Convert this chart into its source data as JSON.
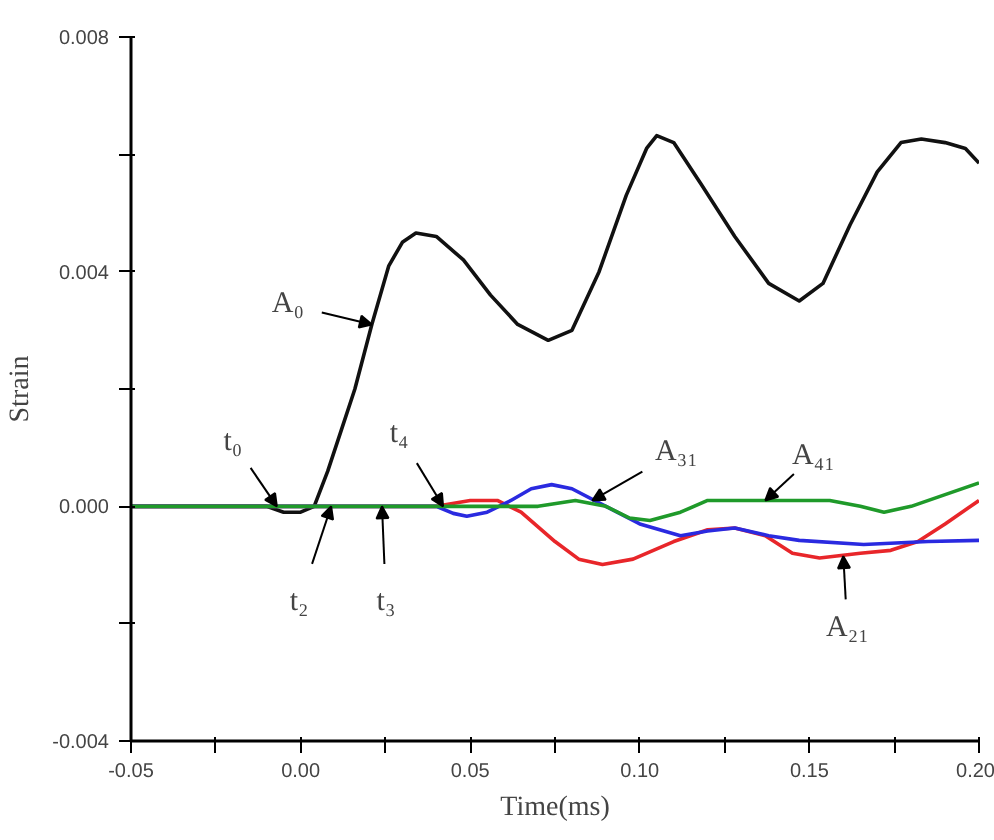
{
  "chart_data": {
    "type": "line",
    "xlabel": "Time(ms)",
    "ylabel": "Strain",
    "xlim": [
      -0.05,
      0.2
    ],
    "ylim": [
      -0.004,
      0.008
    ],
    "xticks": [
      {
        "value": -0.05,
        "label": "-0.05"
      },
      {
        "value": -0.025,
        "label": null
      },
      {
        "value": 0,
        "label": "0.00"
      },
      {
        "value": 0.025,
        "label": null
      },
      {
        "value": 0.05,
        "label": "0.05"
      },
      {
        "value": 0.075,
        "label": null
      },
      {
        "value": 0.1,
        "label": "0.10"
      },
      {
        "value": 0.125,
        "label": null
      },
      {
        "value": 0.15,
        "label": "0.15"
      },
      {
        "value": 0.175,
        "label": null
      },
      {
        "value": 0.2,
        "label": "0.20"
      }
    ],
    "yticks": [
      {
        "value": -0.004,
        "label": "-0.004"
      },
      {
        "value": -0.002,
        "label": null
      },
      {
        "value": 0,
        "label": "0.000"
      },
      {
        "value": 0.002,
        "label": null
      },
      {
        "value": 0.004,
        "label": "0.004"
      },
      {
        "value": 0.006,
        "label": null
      },
      {
        "value": 0.008,
        "label": "0.008"
      }
    ],
    "grid": false,
    "marker": "none",
    "line_style": "solid",
    "series": [
      {
        "color": "#111111",
        "x": [
          -0.05,
          -0.03,
          -0.01,
          -0.005,
          0.0,
          0.004,
          0.008,
          0.012,
          0.016,
          0.021,
          0.026,
          0.03,
          0.034,
          0.04,
          0.048,
          0.056,
          0.064,
          0.073,
          0.08,
          0.088,
          0.096,
          0.102,
          0.105,
          0.11,
          0.118,
          0.128,
          0.138,
          0.147,
          0.154,
          0.162,
          0.17,
          0.177,
          0.183,
          0.19,
          0.196,
          0.2
        ],
        "values": [
          0,
          0,
          0,
          -0.0001,
          -0.0001,
          0,
          0.0006,
          0.0013,
          0.002,
          0.0031,
          0.0041,
          0.0045,
          0.00466,
          0.0046,
          0.0042,
          0.0036,
          0.0031,
          0.00283,
          0.003,
          0.004,
          0.0053,
          0.0061,
          0.00632,
          0.0062,
          0.0055,
          0.0046,
          0.0038,
          0.0035,
          0.0038,
          0.0048,
          0.0057,
          0.0062,
          0.00626,
          0.0062,
          0.0061,
          0.00585
        ]
      },
      {
        "color": "#e8262a",
        "x": [
          -0.05,
          0.04,
          0.05,
          0.058,
          0.065,
          0.075,
          0.082,
          0.089,
          0.098,
          0.11,
          0.12,
          0.128,
          0.137,
          0.145,
          0.153,
          0.165,
          0.174,
          0.182,
          0.19,
          0.2
        ],
        "values": [
          0,
          0,
          0.0001,
          0.0001,
          -0.0001,
          -0.0006,
          -0.0009,
          -0.00099,
          -0.0009,
          -0.0006,
          -0.0004,
          -0.00037,
          -0.0005,
          -0.0008,
          -0.00088,
          -0.0008,
          -0.00075,
          -0.0006,
          -0.0003,
          0.0001
        ]
      },
      {
        "color": "#2a2ae0",
        "x": [
          -0.05,
          0.04,
          0.045,
          0.049,
          0.055,
          0.062,
          0.068,
          0.074,
          0.08,
          0.09,
          0.1,
          0.112,
          0.12,
          0.128,
          0.138,
          0.147,
          0.166,
          0.185,
          0.2
        ],
        "values": [
          0,
          0,
          -0.00012,
          -0.00017,
          -0.0001,
          0.0001,
          0.0003,
          0.00037,
          0.0003,
          0.0,
          -0.0003,
          -0.0005,
          -0.00042,
          -0.00037,
          -0.0005,
          -0.00058,
          -0.00065,
          -0.0006,
          -0.00058
        ]
      },
      {
        "color": "#1f9a2a",
        "x": [
          -0.05,
          0.06,
          0.07,
          0.081,
          0.09,
          0.097,
          0.103,
          0.112,
          0.12,
          0.128,
          0.145,
          0.156,
          0.165,
          0.172,
          0.18,
          0.19,
          0.2
        ],
        "values": [
          0,
          0,
          0,
          0.0001,
          0.0,
          -0.0002,
          -0.00024,
          -0.0001,
          0.0001,
          0.0001,
          0.0001,
          0.0001,
          0,
          -0.0001,
          0,
          0.0002,
          0.0004
        ]
      }
    ],
    "annotations": [
      {
        "text": "A₀",
        "x": 0.021,
        "y": 0.0031
      },
      {
        "text": "t₀",
        "x": -0.007,
        "y": 0.0
      },
      {
        "text": "t₂",
        "x": 0.009,
        "y": 0.0
      },
      {
        "text": "t₃",
        "x": 0.024,
        "y": 0.0
      },
      {
        "text": "t₄",
        "x": 0.042,
        "y": 0.0
      },
      {
        "text": "A₃₁",
        "x": 0.086,
        "y": 0.0001
      },
      {
        "text": "A₄₁",
        "x": 0.137,
        "y": 0.0001
      },
      {
        "text": "A₂₁",
        "x": 0.16,
        "y": -0.00085
      }
    ]
  }
}
